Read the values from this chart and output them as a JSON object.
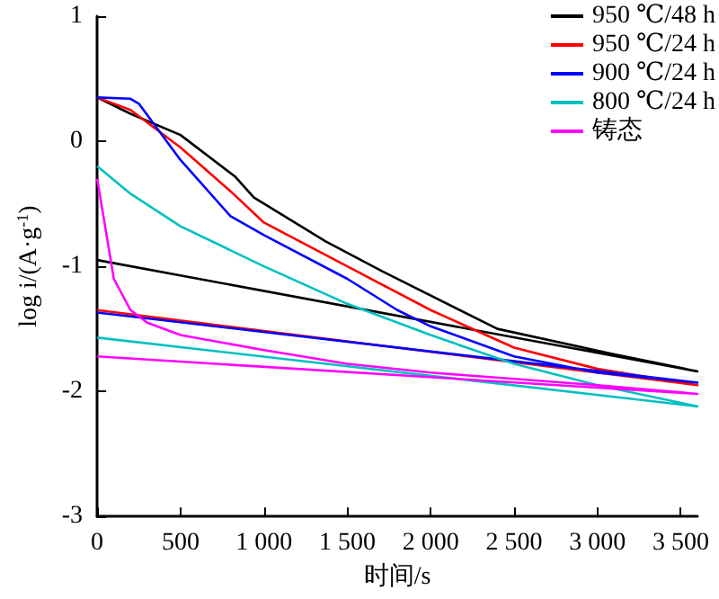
{
  "chart_data": {
    "type": "line",
    "xlabel": "时间/s",
    "ylabel": "log i/(A·g$^{-1}$)",
    "xlim": [
      0,
      3600
    ],
    "xticks": [
      0,
      500,
      {
        "value": 1000,
        "label": "1 000"
      },
      {
        "value": 1500,
        "label": "1 500"
      },
      {
        "value": 2000,
        "label": "2 000"
      },
      {
        "value": 2500,
        "label": "2 500"
      },
      {
        "value": 3000,
        "label": "3 000"
      },
      {
        "value": 3500,
        "label": "3 500"
      }
    ],
    "ylim": [
      -3,
      1
    ],
    "yticks": [
      -3,
      -2,
      -1,
      0,
      1
    ],
    "grid": false,
    "legend": "top right",
    "marker": "none",
    "line_style": "solid",
    "series": [
      {
        "name": "950 ℃/48 h",
        "color": "#000000",
        "x": [
          0,
          200,
          500,
          825,
          940,
          1370,
          1710,
          2400,
          3090,
          3600,
          0
        ],
        "values": [
          0.35,
          0.22,
          0.05,
          -0.28,
          -0.45,
          -0.8,
          -1.04,
          -1.5,
          -1.7,
          -1.84,
          -0.95
        ]
      },
      {
        "name": "950 ℃/24 h",
        "color": "#ff0000",
        "x": [
          0,
          200,
          500,
          800,
          1000,
          1500,
          2000,
          2500,
          3000,
          3600,
          0
        ],
        "values": [
          0.35,
          0.25,
          -0.05,
          -0.4,
          -0.65,
          -1.0,
          -1.35,
          -1.65,
          -1.82,
          -1.95,
          -1.35
        ]
      },
      {
        "name": "900 ℃/24 h",
        "color": "#0000ff",
        "x": [
          0,
          200,
          250,
          500,
          800,
          1000,
          1500,
          1800,
          2000,
          2500,
          3000,
          3600,
          0
        ],
        "values": [
          0.35,
          0.34,
          0.3,
          -0.15,
          -0.6,
          -0.75,
          -1.1,
          -1.35,
          -1.48,
          -1.72,
          -1.85,
          -1.93,
          -1.37
        ]
      },
      {
        "name": "800 ℃/24 h",
        "color": "#00c0c0",
        "x": [
          0,
          200,
          500,
          1000,
          1500,
          2000,
          2500,
          3000,
          3600,
          0
        ],
        "values": [
          -0.2,
          -0.42,
          -0.68,
          -1.0,
          -1.3,
          -1.55,
          -1.78,
          -1.95,
          -2.12,
          -1.57
        ]
      },
      {
        "name": "铸态",
        "color": "#ff00ff",
        "x": [
          0,
          50,
          100,
          200,
          300,
          500,
          1000,
          1500,
          2000,
          2500,
          3000,
          3600,
          0
        ],
        "values": [
          -0.3,
          -0.7,
          -1.1,
          -1.35,
          -1.45,
          -1.55,
          -1.67,
          -1.78,
          -1.85,
          -1.9,
          -1.95,
          -2.02,
          -1.72
        ]
      }
    ]
  }
}
